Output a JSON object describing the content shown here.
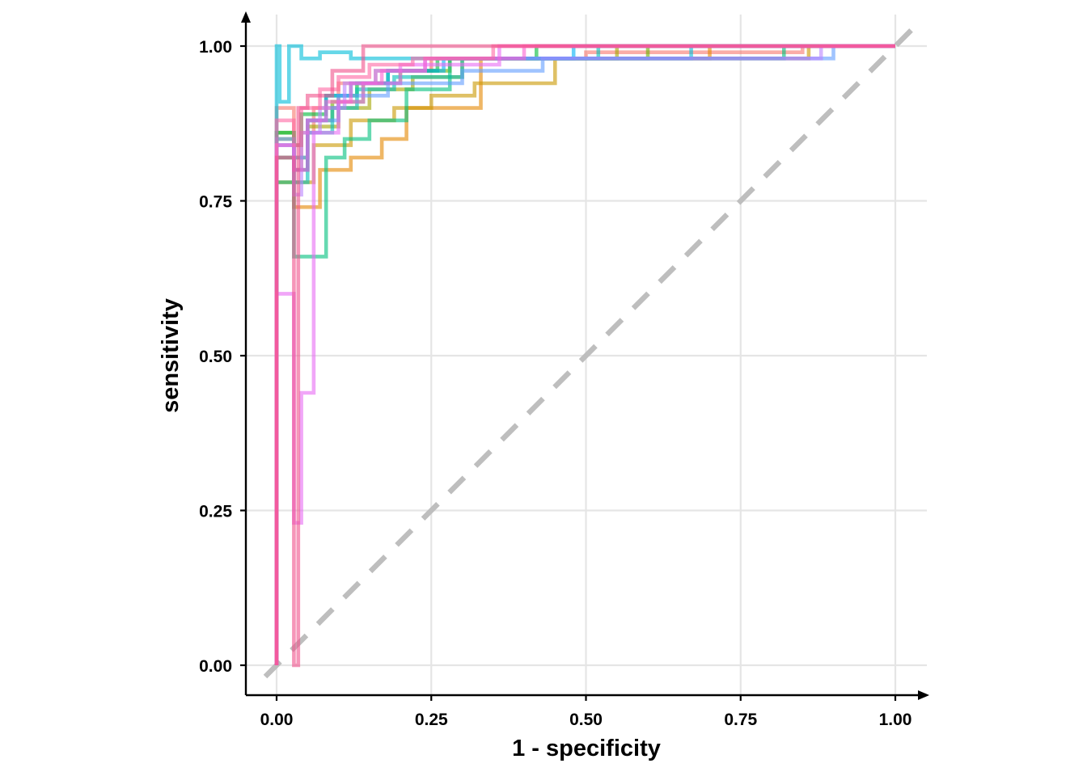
{
  "chart_data": {
    "type": "line",
    "title": "",
    "xlabel": "1 - specificity",
    "ylabel": "sensitivity",
    "xlim": [
      0,
      1
    ],
    "ylim": [
      0,
      1
    ],
    "x_ticks": [
      "0.00",
      "0.25",
      "0.50",
      "0.75",
      "1.00"
    ],
    "y_ticks": [
      "0.00",
      "0.25",
      "0.50",
      "0.75",
      "1.00"
    ],
    "grid": true,
    "legend": "none",
    "reference_line": {
      "style": "dashed",
      "color": "#bebebe",
      "x": [
        0,
        1
      ],
      "y": [
        0,
        1
      ]
    },
    "series": [
      {
        "color": "#F8766D",
        "x": [
          0,
          0,
          0.028,
          0.028,
          0.04,
          0.04,
          0.06,
          0.06,
          0.1,
          0.1,
          0.16,
          0.16,
          0.25,
          0.25,
          0.5,
          0.5,
          0.85,
          0.85,
          1
        ],
        "y": [
          0,
          0.9,
          0.9,
          0.8,
          0.8,
          0.86,
          0.86,
          0.9,
          0.9,
          0.94,
          0.94,
          0.96,
          0.96,
          0.98,
          0.98,
          0.99,
          0.99,
          1.0,
          1.0
        ]
      },
      {
        "color": "#E58700",
        "x": [
          0,
          0,
          0.028,
          0.028,
          0.07,
          0.07,
          0.12,
          0.12,
          0.17,
          0.17,
          0.21,
          0.21,
          0.33,
          0.33,
          0.7,
          0.7,
          1
        ],
        "y": [
          0,
          0.78,
          0.78,
          0.74,
          0.74,
          0.8,
          0.8,
          0.82,
          0.82,
          0.85,
          0.85,
          0.9,
          0.9,
          0.98,
          0.98,
          1.0,
          1.0
        ]
      },
      {
        "color": "#C99800",
        "x": [
          0,
          0,
          0.028,
          0.028,
          0.06,
          0.06,
          0.12,
          0.12,
          0.19,
          0.19,
          0.25,
          0.25,
          0.32,
          0.32,
          0.45,
          0.45,
          0.86,
          0.86,
          1
        ],
        "y": [
          0,
          0.82,
          0.82,
          0.78,
          0.78,
          0.84,
          0.84,
          0.88,
          0.88,
          0.9,
          0.9,
          0.92,
          0.92,
          0.94,
          0.94,
          0.98,
          0.98,
          1.0,
          1.0
        ]
      },
      {
        "color": "#A3A500",
        "x": [
          0,
          0,
          0.028,
          0.028,
          0.05,
          0.05,
          0.1,
          0.1,
          0.15,
          0.15,
          0.22,
          0.22,
          0.3,
          0.3,
          0.55,
          0.55,
          1
        ],
        "y": [
          0,
          0.85,
          0.85,
          0.8,
          0.8,
          0.87,
          0.87,
          0.9,
          0.9,
          0.93,
          0.93,
          0.95,
          0.95,
          0.98,
          0.98,
          1.0,
          1.0
        ]
      },
      {
        "color": "#6BB100",
        "x": [
          0,
          0,
          0.028,
          0.028,
          0.05,
          0.05,
          0.09,
          0.09,
          0.14,
          0.14,
          0.2,
          0.2,
          0.28,
          0.28,
          0.6,
          0.6,
          1
        ],
        "y": [
          0,
          0.86,
          0.86,
          0.82,
          0.82,
          0.88,
          0.88,
          0.91,
          0.91,
          0.94,
          0.94,
          0.96,
          0.96,
          0.98,
          0.98,
          1.0,
          1.0
        ]
      },
      {
        "color": "#00BA38",
        "x": [
          0,
          0,
          0.028,
          0.028,
          0.04,
          0.04,
          0.08,
          0.08,
          0.13,
          0.13,
          0.18,
          0.18,
          0.26,
          0.26,
          0.42,
          0.42,
          1
        ],
        "y": [
          0,
          0.86,
          0.86,
          0.84,
          0.84,
          0.89,
          0.89,
          0.92,
          0.92,
          0.94,
          0.94,
          0.96,
          0.96,
          0.98,
          0.98,
          1.0,
          1.0
        ]
      },
      {
        "color": "#00BF7D",
        "x": [
          0,
          0,
          0.028,
          0.028,
          0.05,
          0.05,
          0.08,
          0.08,
          0.11,
          0.11,
          0.15,
          0.15,
          0.21,
          0.21,
          0.28,
          0.28,
          0.82,
          0.82,
          1
        ],
        "y": [
          0,
          0.78,
          0.78,
          0.66,
          0.66,
          0.66,
          0.66,
          0.82,
          0.82,
          0.85,
          0.85,
          0.88,
          0.88,
          0.93,
          0.93,
          0.98,
          0.98,
          1.0,
          1.0
        ]
      },
      {
        "color": "#00C0B8",
        "x": [
          0,
          0,
          0.028,
          0.028,
          0.05,
          0.05,
          0.09,
          0.09,
          0.13,
          0.13,
          0.19,
          0.19,
          0.3,
          0.3,
          0.52,
          0.52,
          1
        ],
        "y": [
          0,
          0.82,
          0.82,
          0.78,
          0.78,
          0.86,
          0.86,
          0.9,
          0.9,
          0.93,
          0.93,
          0.95,
          0.95,
          0.98,
          0.98,
          1.0,
          1.0
        ]
      },
      {
        "color": "#00BCD8",
        "x": [
          0,
          0,
          0.005,
          0.005,
          0.02,
          0.02,
          0.04,
          0.04,
          0.07,
          0.07,
          0.12,
          0.12,
          0.67,
          0.67,
          1
        ],
        "y": [
          0,
          1.0,
          1.0,
          0.91,
          0.91,
          1.0,
          1.0,
          0.98,
          0.98,
          0.99,
          0.99,
          0.98,
          0.98,
          1.0,
          1.0
        ]
      },
      {
        "color": "#00B0F6",
        "x": [
          0,
          0,
          0.028,
          0.028,
          0.05,
          0.05,
          0.08,
          0.08,
          0.12,
          0.12,
          0.18,
          0.18,
          0.27,
          0.27,
          0.48,
          0.48,
          1
        ],
        "y": [
          0,
          0.84,
          0.84,
          0.8,
          0.8,
          0.88,
          0.88,
          0.92,
          0.92,
          0.94,
          0.94,
          0.96,
          0.96,
          0.98,
          0.98,
          1.0,
          1.0
        ]
      },
      {
        "color": "#619CFF",
        "x": [
          0,
          0,
          0.028,
          0.028,
          0.05,
          0.05,
          0.1,
          0.1,
          0.18,
          0.18,
          0.3,
          0.3,
          0.43,
          0.43,
          0.9,
          0.9,
          1
        ],
        "y": [
          0,
          0.85,
          0.85,
          0.82,
          0.82,
          0.88,
          0.88,
          0.92,
          0.92,
          0.94,
          0.94,
          0.96,
          0.96,
          0.98,
          0.98,
          1.0,
          1.0
        ]
      },
      {
        "color": "#B983FF",
        "x": [
          0,
          0,
          0.028,
          0.028,
          0.04,
          0.04,
          0.07,
          0.07,
          0.11,
          0.11,
          0.16,
          0.16,
          0.24,
          0.24,
          0.88,
          0.88,
          1
        ],
        "y": [
          0,
          0.84,
          0.84,
          0.76,
          0.76,
          0.86,
          0.86,
          0.9,
          0.9,
          0.94,
          0.94,
          0.96,
          0.96,
          0.98,
          0.98,
          1.0,
          1.0
        ]
      },
      {
        "color": "#E76BF3",
        "x": [
          0,
          0,
          0.028,
          0.028,
          0.04,
          0.04,
          0.06,
          0.06,
          0.1,
          0.1,
          0.14,
          0.14,
          0.2,
          0.2,
          0.36,
          0.36,
          1
        ],
        "y": [
          0,
          0.6,
          0.6,
          0.23,
          0.23,
          0.44,
          0.44,
          0.86,
          0.86,
          0.91,
          0.91,
          0.94,
          0.94,
          0.97,
          0.97,
          1.0,
          1.0
        ]
      },
      {
        "color": "#FD61D1",
        "x": [
          0,
          0,
          0.028,
          0.028,
          0.05,
          0.05,
          0.08,
          0.08,
          0.12,
          0.12,
          0.17,
          0.17,
          0.24,
          0.24,
          0.4,
          0.4,
          1
        ],
        "y": [
          0,
          0.84,
          0.84,
          0.8,
          0.8,
          0.88,
          0.88,
          0.91,
          0.91,
          0.94,
          0.94,
          0.96,
          0.96,
          0.98,
          0.98,
          1.0,
          1.0
        ]
      },
      {
        "color": "#FF67A4",
        "x": [
          0,
          0,
          0.028,
          0.028,
          0.04,
          0.04,
          0.07,
          0.07,
          0.1,
          0.1,
          0.15,
          0.15,
          0.22,
          0.22,
          0.35,
          0.35,
          1
        ],
        "y": [
          0,
          0.88,
          0.88,
          0.84,
          0.84,
          0.9,
          0.9,
          0.93,
          0.93,
          0.95,
          0.95,
          0.97,
          0.97,
          0.98,
          0.98,
          1.0,
          1.0
        ]
      },
      {
        "color": "#F0508A",
        "x": [
          0,
          0,
          0.028,
          0.028,
          0.035,
          0.035,
          0.05,
          0.05,
          0.09,
          0.09,
          0.14,
          0.14,
          1
        ],
        "y": [
          0,
          0.82,
          0.82,
          0.0,
          0.0,
          0.9,
          0.9,
          0.92,
          0.92,
          0.96,
          0.96,
          1.0,
          1.0
        ]
      }
    ]
  }
}
